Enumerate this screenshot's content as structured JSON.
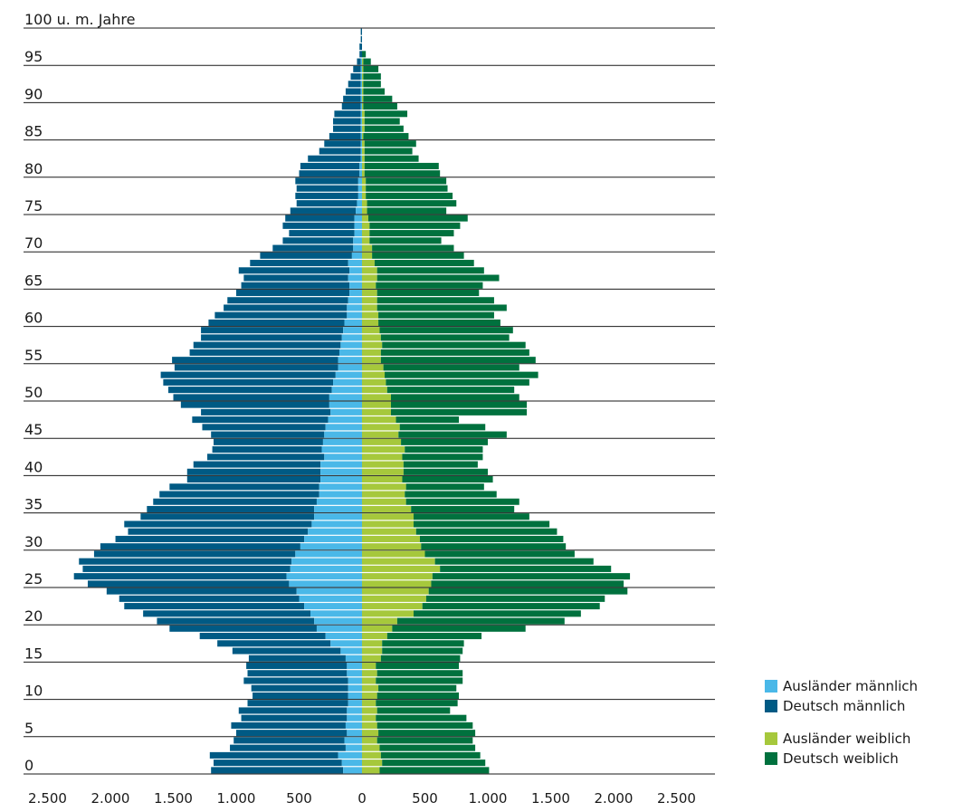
{
  "chart_data": {
    "type": "bar",
    "orientation": "horizontal-population-pyramid",
    "ylabel": "100 u. m. Jahre",
    "y_tick_labels": [
      "0",
      "5",
      "10",
      "15",
      "20",
      "25",
      "30",
      "35",
      "40",
      "45",
      "50",
      "55",
      "60",
      "65",
      "70",
      "75",
      "80",
      "85",
      "90",
      "95"
    ],
    "x_tick_labels": [
      "2.500",
      "2.000",
      "1.500",
      "1.000",
      "500",
      "0",
      "500",
      "1.000",
      "1.500",
      "2.000",
      "2.500"
    ],
    "xlim": [
      -2500,
      2500
    ],
    "age_range": [
      0,
      100
    ],
    "grid": "horizontal lines every 5 years",
    "legend_position": "bottom-right",
    "series": [
      {
        "name": "Ausländer männlich",
        "color": "#4ab8e8",
        "side": "left",
        "values": [
          150,
          160,
          190,
          130,
          140,
          120,
          130,
          120,
          120,
          110,
          110,
          110,
          110,
          120,
          120,
          130,
          170,
          250,
          290,
          360,
          380,
          410,
          460,
          500,
          520,
          580,
          600,
          570,
          560,
          530,
          490,
          460,
          430,
          400,
          380,
          380,
          360,
          340,
          340,
          330,
          330,
          330,
          300,
          320,
          310,
          300,
          290,
          270,
          250,
          260,
          260,
          240,
          230,
          210,
          190,
          190,
          180,
          170,
          160,
          150,
          140,
          120,
          120,
          110,
          100,
          100,
          110,
          100,
          110,
          80,
          70,
          70,
          60,
          60,
          60,
          50,
          40,
          30,
          30,
          30,
          20,
          20,
          10,
          10,
          10,
          10,
          10,
          10,
          10,
          10,
          10,
          10,
          10,
          10,
          10,
          10,
          0,
          0,
          0,
          0,
          0
        ]
      },
      {
        "name": "Deutsch männlich",
        "color": "#005a84",
        "side": "left",
        "values": [
          1050,
          1020,
          1020,
          920,
          880,
          880,
          910,
          840,
          860,
          800,
          760,
          770,
          830,
          790,
          800,
          770,
          860,
          900,
          1000,
          1170,
          1250,
          1330,
          1430,
          1430,
          1510,
          1600,
          1690,
          1650,
          1690,
          1600,
          1590,
          1500,
          1430,
          1490,
          1380,
          1330,
          1300,
          1270,
          1190,
          1060,
          1060,
          1010,
          930,
          870,
          870,
          900,
          980,
          1080,
          1030,
          1180,
          1240,
          1300,
          1350,
          1390,
          1300,
          1320,
          1190,
          1170,
          1120,
          1130,
          1080,
          1050,
          980,
          960,
          900,
          860,
          830,
          880,
          780,
          730,
          640,
          560,
          520,
          570,
          550,
          520,
          480,
          500,
          490,
          500,
          480,
          470,
          420,
          330,
          290,
          250,
          220,
          220,
          210,
          150,
          140,
          120,
          100,
          80,
          60,
          30,
          20,
          20,
          10,
          10,
          0
        ]
      },
      {
        "name": "Ausländer weiblich",
        "color": "#a6c83c",
        "side": "right",
        "values": [
          140,
          160,
          150,
          140,
          120,
          130,
          120,
          110,
          120,
          110,
          120,
          130,
          110,
          120,
          110,
          150,
          160,
          160,
          200,
          240,
          280,
          410,
          480,
          510,
          530,
          550,
          560,
          620,
          580,
          500,
          470,
          460,
          430,
          410,
          410,
          390,
          350,
          340,
          350,
          320,
          330,
          330,
          320,
          340,
          310,
          290,
          300,
          270,
          230,
          230,
          230,
          200,
          190,
          180,
          170,
          150,
          150,
          160,
          150,
          140,
          130,
          130,
          120,
          120,
          120,
          110,
          120,
          120,
          100,
          80,
          80,
          60,
          60,
          60,
          50,
          40,
          40,
          30,
          30,
          30,
          20,
          20,
          20,
          20,
          20,
          10,
          20,
          20,
          20,
          10,
          10,
          10,
          10,
          10,
          10,
          10,
          0,
          0,
          0,
          0,
          0
        ]
      },
      {
        "name": "Deutsch weiblich",
        "color": "#00713e",
        "side": "right",
        "values": [
          870,
          820,
          790,
          760,
          760,
          770,
          760,
          720,
          580,
          650,
          650,
          620,
          690,
          680,
          660,
          630,
          640,
          650,
          750,
          1060,
          1330,
          1330,
          1410,
          1420,
          1580,
          1530,
          1570,
          1360,
          1260,
          1190,
          1150,
          1140,
          1120,
          1080,
          920,
          820,
          900,
          730,
          620,
          720,
          670,
          590,
          640,
          620,
          690,
          860,
          680,
          500,
          1080,
          1080,
          1020,
          1010,
          1140,
          1220,
          1080,
          1230,
          1180,
          1140,
          1020,
          1060,
          970,
          920,
          1030,
          930,
          810,
          850,
          970,
          850,
          790,
          730,
          650,
          570,
          670,
          720,
          790,
          630,
          710,
          690,
          650,
          640,
          600,
          590,
          430,
          380,
          410,
          360,
          310,
          280,
          340,
          270,
          230,
          170,
          140,
          140,
          120,
          60,
          30,
          0,
          0,
          0,
          0
        ]
      }
    ],
    "legend": [
      "Ausländer männlich",
      "Deutsch männlich",
      "Ausländer weiblich",
      "Deutsch weiblich"
    ]
  }
}
